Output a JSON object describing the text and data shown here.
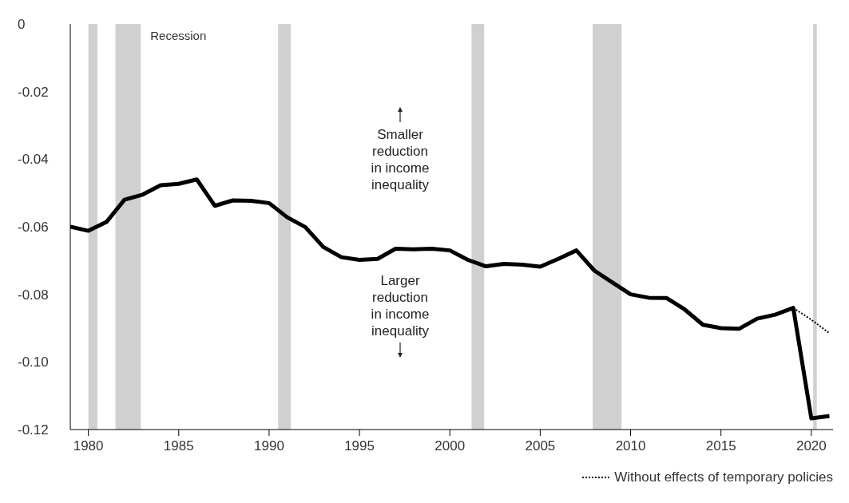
{
  "chart_data": {
    "type": "line",
    "x": [
      1979,
      1980,
      1981,
      1982,
      1983,
      1984,
      1985,
      1986,
      1987,
      1988,
      1989,
      1990,
      1991,
      1992,
      1993,
      1994,
      1995,
      1996,
      1997,
      1998,
      1999,
      2000,
      2001,
      2002,
      2003,
      2004,
      2005,
      2006,
      2007,
      2008,
      2009,
      2010,
      2011,
      2012,
      2013,
      2014,
      2015,
      2016,
      2017,
      2018,
      2019,
      2020,
      2021
    ],
    "series": [
      {
        "color": "#000000",
        "line_style": "solid",
        "values": [
          -0.06,
          -0.0612,
          -0.0586,
          -0.052,
          -0.0505,
          -0.0477,
          -0.0473,
          -0.046,
          -0.0538,
          -0.0522,
          -0.0523,
          -0.053,
          -0.0572,
          -0.0601,
          -0.066,
          -0.069,
          -0.0698,
          -0.0695,
          -0.0665,
          -0.0667,
          -0.0665,
          -0.067,
          -0.0698,
          -0.0717,
          -0.071,
          -0.0712,
          -0.0718,
          -0.0695,
          -0.067,
          -0.073,
          -0.0765,
          -0.08,
          -0.081,
          -0.0811,
          -0.0845,
          -0.089,
          -0.09,
          -0.0902,
          -0.0872,
          -0.086,
          -0.084,
          -0.1167,
          -0.116
        ]
      },
      {
        "name": "Without effects of temporary policies",
        "color": "#000000",
        "line_style": "dotted",
        "x": [
          2019,
          2020,
          2021
        ],
        "values": [
          -0.084,
          -0.0875,
          -0.0915
        ]
      }
    ],
    "xlim": [
      1979,
      2021.2
    ],
    "xticks": [
      1980,
      1985,
      1990,
      1995,
      2000,
      2005,
      2010,
      2015,
      2020
    ],
    "ylim": [
      -0.12,
      0
    ],
    "yticks": [
      0,
      -0.02,
      -0.04,
      -0.06,
      -0.08,
      {
        "value": -0.1,
        "label": "-0.10"
      },
      -0.12
    ],
    "bands": [
      {
        "axis": "x",
        "from": 1980,
        "to": 1980.5,
        "color": "#d0d0d0"
      },
      {
        "axis": "x",
        "from": 1981.5,
        "to": 1982.9,
        "color": "#d0d0d0",
        "label": "Recession"
      },
      {
        "axis": "x",
        "from": 1990.5,
        "to": 1991.2,
        "color": "#d0d0d0"
      },
      {
        "axis": "x",
        "from": 2001.2,
        "to": 2001.9,
        "color": "#d0d0d0"
      },
      {
        "axis": "x",
        "from": 2007.9,
        "to": 2009.5,
        "color": "#d0d0d0"
      },
      {
        "axis": "x",
        "from": 2020.1,
        "to": 2020.3,
        "color": "#d0d0d0"
      }
    ],
    "annotations": [
      "Smaller\nreduction\nin income\ninequality",
      "Larger\nreduction\nin income\ninequality"
    ],
    "grid": false,
    "legend": "bottom right",
    "marker": "none"
  }
}
